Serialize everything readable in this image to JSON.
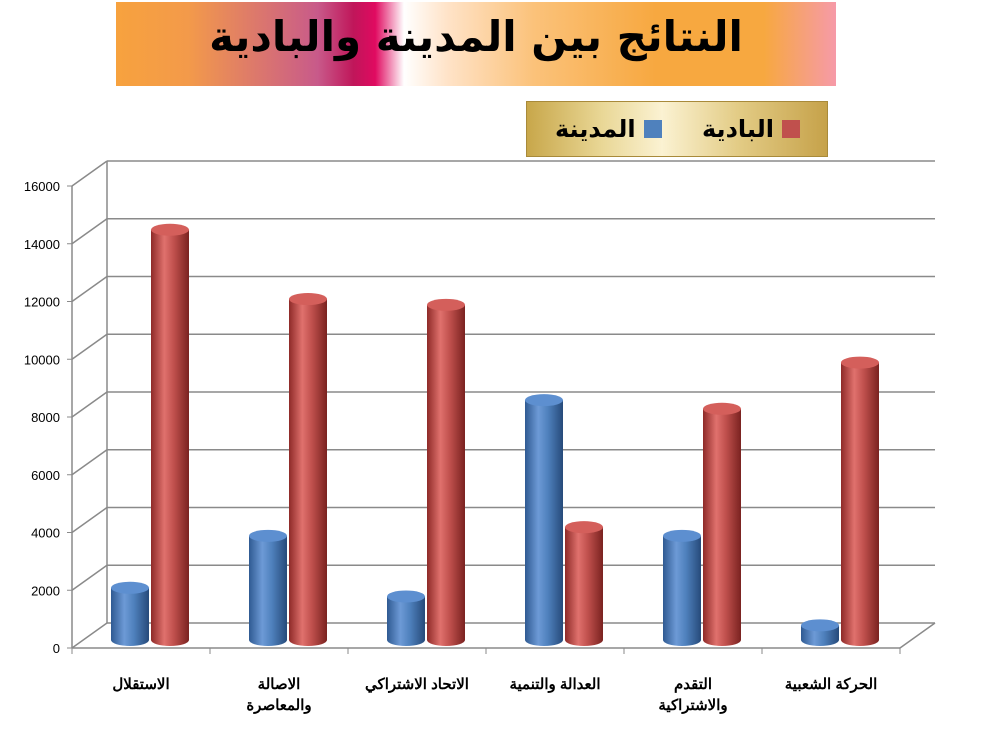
{
  "title": "النتائج بين المدينة والبادية",
  "chart_data": {
    "type": "bar",
    "categories": [
      "الاستقلال",
      "الاصالة والمعاصرة",
      "الاتحاد الاشتراكي",
      "العدالة والتنمية",
      "التقدم والاشتراكية",
      "الحركة الشعبية"
    ],
    "category_lines": [
      [
        "الاستقلال"
      ],
      [
        "الاصالة",
        "والمعاصرة"
      ],
      [
        "الاتحاد الاشتراكي"
      ],
      [
        "العدالة والتنمية"
      ],
      [
        "التقدم",
        "والاشتراكية"
      ],
      [
        "الحركة الشعبية"
      ]
    ],
    "series": [
      {
        "name": "المدينة",
        "color": "#4f81bd",
        "values": [
          1600,
          3400,
          1300,
          8100,
          3400,
          300
        ]
      },
      {
        "name": "البادية",
        "color": "#c0504d",
        "values": [
          14000,
          11600,
          11400,
          3700,
          7800,
          9400
        ]
      }
    ],
    "ylim": [
      0,
      16000
    ],
    "yticks": [
      "0",
      "2000",
      "4000",
      "6000",
      "8000",
      "10000",
      "12000",
      "14000",
      "16000"
    ],
    "grid": true,
    "legend_position": "top-right"
  }
}
